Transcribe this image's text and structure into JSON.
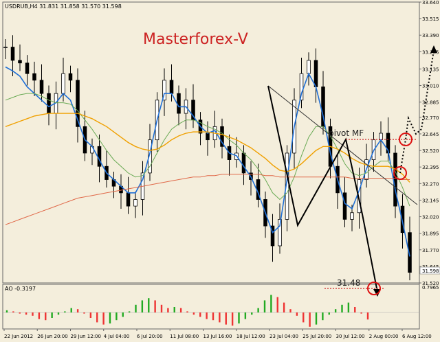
{
  "header": {
    "symbol_info": "USDRUB,H4  31.831 31.858 31.570 31.598",
    "watermark": "Masterforex-V"
  },
  "annotations": {
    "pivot_label": "pivot MF",
    "target_label": "31.48"
  },
  "indicator": {
    "label": "AO -0.3197",
    "scale_label": "0.7965",
    "current_value": -0.3197,
    "up_color": "#22aa22",
    "down_color": "#ee3333"
  },
  "colors": {
    "background": "#f4eedc",
    "candle": "#000000",
    "ma_fast": "#1f6fd6",
    "ma_mid": "#6aaa55",
    "ma_slow": "#f0a000",
    "ma_long": "#e06848",
    "watermark": "#cc2222",
    "circle": "#dd1111"
  },
  "chart_data": {
    "type": "candlestick",
    "symbol": "USDRUB",
    "timeframe": "H4",
    "last_price": 31.598,
    "ylim": [
      31.52,
      33.64
    ],
    "y_ticks": [
      "33.640",
      "33.515",
      "33.390",
      "33.265",
      "33.135",
      "33.010",
      "32.885",
      "32.770",
      "32.645",
      "32.520",
      "32.395",
      "32.270",
      "32.145",
      "32.020",
      "31.895",
      "31.770",
      "31.645",
      "31.520"
    ],
    "x_ticks": [
      "22 Jun 2012",
      "26 Jun 20:00",
      "29 Jun 12:00",
      "4 Jul 04:00",
      "6 Jul 20:00",
      "11 Jul 08:00",
      "13 Jul 16:00",
      "18 Jul 12:00",
      "23 Jul 04:00",
      "25 Jul 20:00",
      "30 Jul 12:00",
      "2 Aug 00:00",
      "6 Aug 12:00"
    ],
    "price_series": [
      33.3,
      33.2,
      33.18,
      33.1,
      33.05,
      32.95,
      32.8,
      32.95,
      33.1,
      33.05,
      32.7,
      32.5,
      32.55,
      32.4,
      32.3,
      32.25,
      32.2,
      32.1,
      32.15,
      32.35,
      32.6,
      32.9,
      33.05,
      32.95,
      32.8,
      32.9,
      32.75,
      32.65,
      32.6,
      32.7,
      32.55,
      32.45,
      32.5,
      32.35,
      32.3,
      32.15,
      31.95,
      31.8,
      32.0,
      32.5,
      32.9,
      33.1,
      33.2,
      33.0,
      32.7,
      32.4,
      32.2,
      32.0,
      32.05,
      32.3,
      32.45,
      32.6,
      32.65,
      32.5,
      32.1,
      31.9,
      31.6
    ],
    "moving_averages": [
      {
        "values": [
          33.15,
          33.12,
          33.08,
          33.0,
          32.95,
          32.9,
          32.85,
          32.88,
          32.95,
          32.9,
          32.75,
          32.6,
          32.55,
          32.45,
          32.35,
          32.3,
          32.25,
          32.2,
          32.2,
          32.3,
          32.5,
          32.75,
          32.95,
          32.95,
          32.85,
          32.85,
          32.78,
          32.7,
          32.65,
          32.67,
          32.58,
          32.5,
          32.48,
          32.4,
          32.32,
          32.2,
          32.05,
          31.9,
          31.95,
          32.3,
          32.7,
          32.95,
          33.1,
          33.0,
          32.78,
          32.5,
          32.3,
          32.12,
          32.08,
          32.22,
          32.38,
          32.52,
          32.6,
          32.52,
          32.22,
          31.98,
          31.72
        ]
      },
      {
        "values": [
          32.9,
          32.92,
          32.94,
          32.95,
          32.95,
          32.93,
          32.9,
          32.88,
          32.88,
          32.87,
          32.82,
          32.75,
          32.68,
          32.6,
          32.52,
          32.45,
          32.4,
          32.35,
          32.32,
          32.33,
          32.4,
          32.5,
          32.6,
          32.68,
          32.72,
          32.75,
          32.75,
          32.73,
          32.7,
          32.68,
          32.65,
          32.6,
          32.56,
          32.5,
          32.45,
          32.38,
          32.3,
          32.2,
          32.15,
          32.2,
          32.32,
          32.48,
          32.62,
          32.7,
          32.7,
          32.63,
          32.53,
          32.42,
          32.35,
          32.33,
          32.35,
          32.4,
          32.44,
          32.44,
          32.36,
          32.24,
          32.1
        ]
      },
      {
        "values": [
          32.7,
          32.72,
          32.74,
          32.76,
          32.78,
          32.79,
          32.8,
          32.8,
          32.8,
          32.8,
          32.8,
          32.78,
          32.76,
          32.73,
          32.7,
          32.66,
          32.62,
          32.58,
          32.55,
          32.53,
          32.52,
          32.53,
          32.56,
          32.6,
          32.63,
          32.65,
          32.66,
          32.66,
          32.66,
          32.65,
          32.64,
          32.62,
          32.6,
          32.57,
          32.54,
          32.5,
          32.46,
          32.41,
          32.37,
          32.36,
          32.38,
          32.42,
          32.47,
          32.52,
          32.55,
          32.55,
          32.53,
          32.5,
          32.46,
          32.43,
          32.41,
          32.4,
          32.4,
          32.4,
          32.38,
          32.34,
          32.28
        ]
      },
      {
        "values": [
          31.96,
          31.98,
          32.0,
          32.02,
          32.04,
          32.06,
          32.08,
          32.1,
          32.12,
          32.14,
          32.16,
          32.17,
          32.18,
          32.19,
          32.2,
          32.21,
          32.22,
          32.23,
          32.24,
          32.25,
          32.26,
          32.27,
          32.28,
          32.29,
          32.3,
          32.31,
          32.32,
          32.32,
          32.33,
          32.33,
          32.34,
          32.34,
          32.34,
          32.34,
          32.34,
          32.34,
          32.33,
          32.33,
          32.32,
          32.32,
          32.32,
          32.32,
          32.32,
          32.32,
          32.32,
          32.32,
          32.32,
          32.32,
          32.31,
          32.31,
          32.31,
          32.31,
          32.31,
          32.31,
          32.31,
          32.3,
          32.3
        ]
      }
    ],
    "ao_values": [
      0.1,
      0.05,
      -0.05,
      -0.1,
      -0.15,
      -0.3,
      -0.35,
      -0.25,
      -0.1,
      0.05,
      0.2,
      0.15,
      -0.05,
      -0.25,
      -0.45,
      -0.55,
      -0.5,
      -0.35,
      -0.2,
      0.05,
      0.35,
      0.55,
      0.65,
      0.55,
      0.35,
      0.2,
      0.25,
      0.2,
      0.05,
      -0.1,
      -0.2,
      -0.3,
      -0.35,
      -0.45,
      -0.55,
      -0.6,
      -0.5,
      -0.3,
      -0.1,
      0.2,
      0.55,
      0.8,
      0.7,
      0.45,
      0.15,
      -0.15,
      -0.45,
      -0.65,
      -0.55,
      -0.35,
      -0.1,
      0.15,
      0.35,
      0.45,
      0.25,
      -0.05,
      -0.32
    ]
  }
}
